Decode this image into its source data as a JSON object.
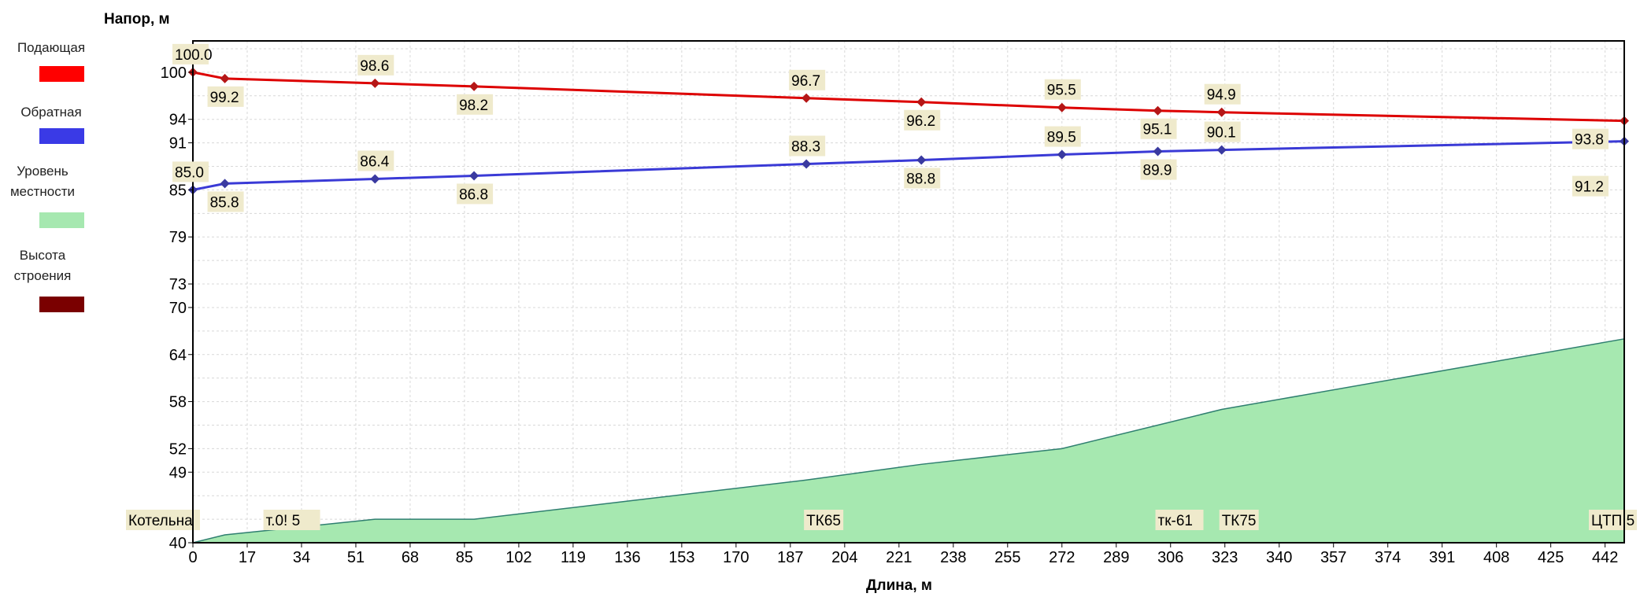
{
  "legend": [
    {
      "label": "Подающая",
      "color": "#ff0000"
    },
    {
      "label": "Обратная",
      "color": "#3a3ae6"
    },
    {
      "label": "Уровень местности",
      "color": "#a6e8b0"
    },
    {
      "label": "Высота строения",
      "color": "#7a0000"
    }
  ],
  "chart_data": {
    "type": "line",
    "ylabel": "Напор, м",
    "xlabel": "Длина, м",
    "xlim": [
      0,
      448
    ],
    "ylim": [
      40,
      104
    ],
    "x_ticks": [
      0,
      17,
      34,
      51,
      68,
      85,
      102,
      119,
      136,
      153,
      170,
      187,
      204,
      221,
      238,
      255,
      272,
      289,
      306,
      323,
      340,
      357,
      374,
      391,
      408,
      425,
      442
    ],
    "y_ticks": [
      40,
      49,
      52,
      58,
      64,
      70,
      73,
      79,
      85,
      91,
      94,
      100
    ],
    "grid": true,
    "series": [
      {
        "name": "Подающая",
        "color": "#dd0000",
        "points": [
          [
            0,
            100.0
          ],
          [
            10,
            99.2
          ],
          [
            57,
            98.6
          ],
          [
            88,
            98.2
          ],
          [
            192,
            96.7
          ],
          [
            228,
            96.2
          ],
          [
            272,
            95.5
          ],
          [
            302,
            95.1
          ],
          [
            322,
            94.9
          ],
          [
            448,
            93.8
          ]
        ],
        "labels": [
          "100.0",
          "99.2",
          "98.6",
          "98.2",
          "96.7",
          "96.2",
          "95.5",
          "95.1",
          "94.9",
          "93.8"
        ]
      },
      {
        "name": "Обратная",
        "color": "#3a3ad6",
        "points": [
          [
            0,
            85.0
          ],
          [
            10,
            85.8
          ],
          [
            57,
            86.4
          ],
          [
            88,
            86.8
          ],
          [
            192,
            88.3
          ],
          [
            228,
            88.8
          ],
          [
            272,
            89.5
          ],
          [
            302,
            89.9
          ],
          [
            322,
            90.1
          ],
          [
            448,
            91.2
          ]
        ],
        "labels": [
          "85.0",
          "85.8",
          "86.4",
          "86.8",
          "88.3",
          "88.8",
          "89.5",
          "89.9",
          "90.1",
          "91.2"
        ]
      }
    ],
    "terrain": {
      "name": "Уровень местности",
      "color": "#a6e8b0",
      "points": [
        [
          0,
          40.0
        ],
        [
          10,
          41.0
        ],
        [
          57,
          43.0
        ],
        [
          88,
          43.0
        ],
        [
          192,
          48.0
        ],
        [
          228,
          50.0
        ],
        [
          272,
          52.0
        ],
        [
          302,
          55.0
        ],
        [
          322,
          57.0
        ],
        [
          448,
          66.0
        ]
      ]
    },
    "nodes": [
      {
        "x": 0,
        "label": "Котельна"
      },
      {
        "x": 10,
        "label": "т.0! 5"
      },
      {
        "x": 192,
        "label": "ТК65"
      },
      {
        "x": 302,
        "label": "тк-61"
      },
      {
        "x": 322,
        "label": "ТК75"
      },
      {
        "x": 448,
        "label": "ЦТП 5"
      }
    ]
  }
}
